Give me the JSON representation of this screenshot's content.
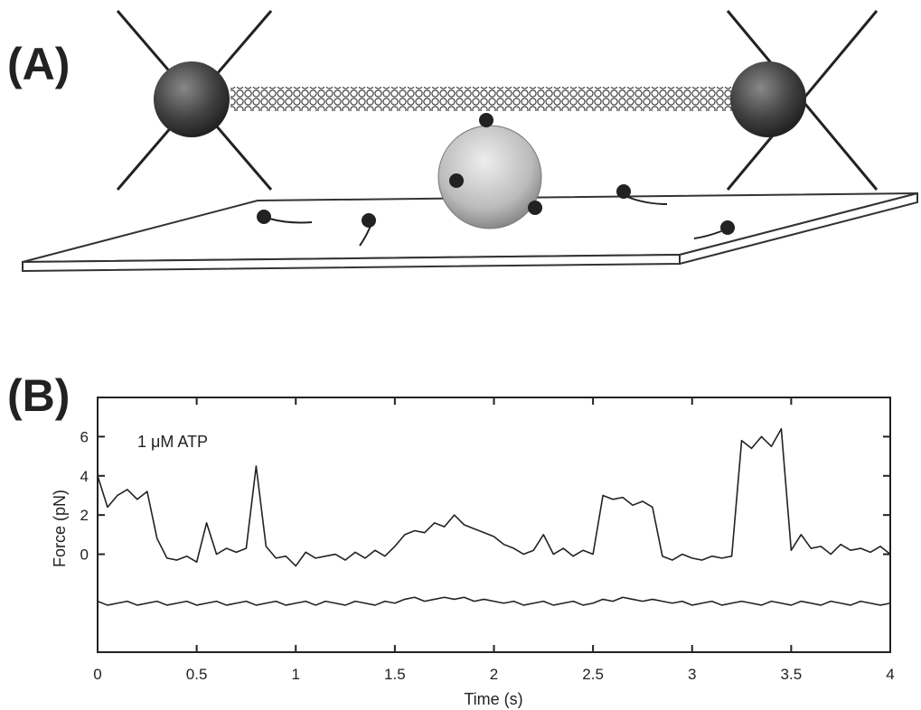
{
  "panel_a": {
    "label": "(A)"
  },
  "panel_b": {
    "label": "(B)"
  },
  "chart_data": {
    "type": "line",
    "annotation": "1 μM ATP",
    "xlabel": "Time (s)",
    "ylabel": "Force (pN)",
    "x": [
      0,
      0.05,
      0.1,
      0.15,
      0.2,
      0.25,
      0.3,
      0.35,
      0.4,
      0.45,
      0.5,
      0.55,
      0.6,
      0.65,
      0.7,
      0.75,
      0.8,
      0.85,
      0.9,
      0.95,
      1,
      1.05,
      1.1,
      1.15,
      1.2,
      1.25,
      1.3,
      1.35,
      1.4,
      1.45,
      1.5,
      1.55,
      1.6,
      1.65,
      1.7,
      1.75,
      1.8,
      1.85,
      1.9,
      1.95,
      2,
      2.05,
      2.1,
      2.15,
      2.2,
      2.25,
      2.3,
      2.35,
      2.4,
      2.45,
      2.5,
      2.55,
      2.6,
      2.65,
      2.7,
      2.75,
      2.8,
      2.85,
      2.9,
      2.95,
      3,
      3.05,
      3.1,
      3.15,
      3.2,
      3.25,
      3.3,
      3.35,
      3.4,
      3.45,
      3.5,
      3.55,
      3.6,
      3.65,
      3.7,
      3.75,
      3.8,
      3.85,
      3.9,
      3.95,
      4
    ],
    "series": [
      {
        "color": "#222",
        "values": [
          4.0,
          2.4,
          3.0,
          3.3,
          2.8,
          3.2,
          0.8,
          -0.2,
          -0.3,
          -0.1,
          -0.4,
          1.6,
          0.0,
          0.3,
          0.1,
          0.3,
          4.5,
          0.4,
          -0.2,
          -0.1,
          -0.6,
          0.1,
          -0.2,
          -0.1,
          0.0,
          -0.3,
          0.1,
          -0.2,
          0.2,
          -0.1,
          0.4,
          1.0,
          1.2,
          1.1,
          1.6,
          1.4,
          2.0,
          1.5,
          1.3,
          1.1,
          0.9,
          0.5,
          0.3,
          0.0,
          0.2,
          1.0,
          0.0,
          0.3,
          -0.1,
          0.2,
          0.0,
          3.0,
          2.8,
          2.9,
          2.5,
          2.7,
          2.4,
          -0.1,
          -0.3,
          0.0,
          -0.2,
          -0.3,
          -0.1,
          -0.2,
          -0.1,
          5.8,
          5.4,
          6.0,
          5.5,
          6.4,
          0.2,
          1.0,
          0.3,
          0.4,
          0.0,
          0.5,
          0.2,
          0.3,
          0.1,
          0.4,
          0.0
        ]
      },
      {
        "color": "#222",
        "values": [
          -2.4,
          -2.6,
          -2.5,
          -2.4,
          -2.6,
          -2.5,
          -2.4,
          -2.6,
          -2.5,
          -2.4,
          -2.6,
          -2.5,
          -2.4,
          -2.6,
          -2.5,
          -2.4,
          -2.6,
          -2.5,
          -2.4,
          -2.6,
          -2.5,
          -2.4,
          -2.6,
          -2.4,
          -2.5,
          -2.6,
          -2.4,
          -2.5,
          -2.6,
          -2.4,
          -2.5,
          -2.3,
          -2.2,
          -2.4,
          -2.3,
          -2.2,
          -2.3,
          -2.2,
          -2.4,
          -2.3,
          -2.4,
          -2.5,
          -2.4,
          -2.6,
          -2.5,
          -2.4,
          -2.6,
          -2.5,
          -2.4,
          -2.6,
          -2.5,
          -2.3,
          -2.4,
          -2.2,
          -2.3,
          -2.4,
          -2.3,
          -2.4,
          -2.5,
          -2.4,
          -2.6,
          -2.5,
          -2.4,
          -2.6,
          -2.5,
          -2.4,
          -2.5,
          -2.6,
          -2.4,
          -2.5,
          -2.6,
          -2.4,
          -2.5,
          -2.6,
          -2.4,
          -2.5,
          -2.6,
          -2.4,
          -2.5,
          -2.6,
          -2.5
        ]
      }
    ],
    "xlim": [
      0,
      4
    ],
    "xticks": [
      0,
      0.5,
      1,
      1.5,
      2,
      2.5,
      3,
      3.5,
      4
    ],
    "ylim": [
      -5,
      8
    ],
    "yticks": [
      0,
      2,
      4,
      6
    ]
  }
}
